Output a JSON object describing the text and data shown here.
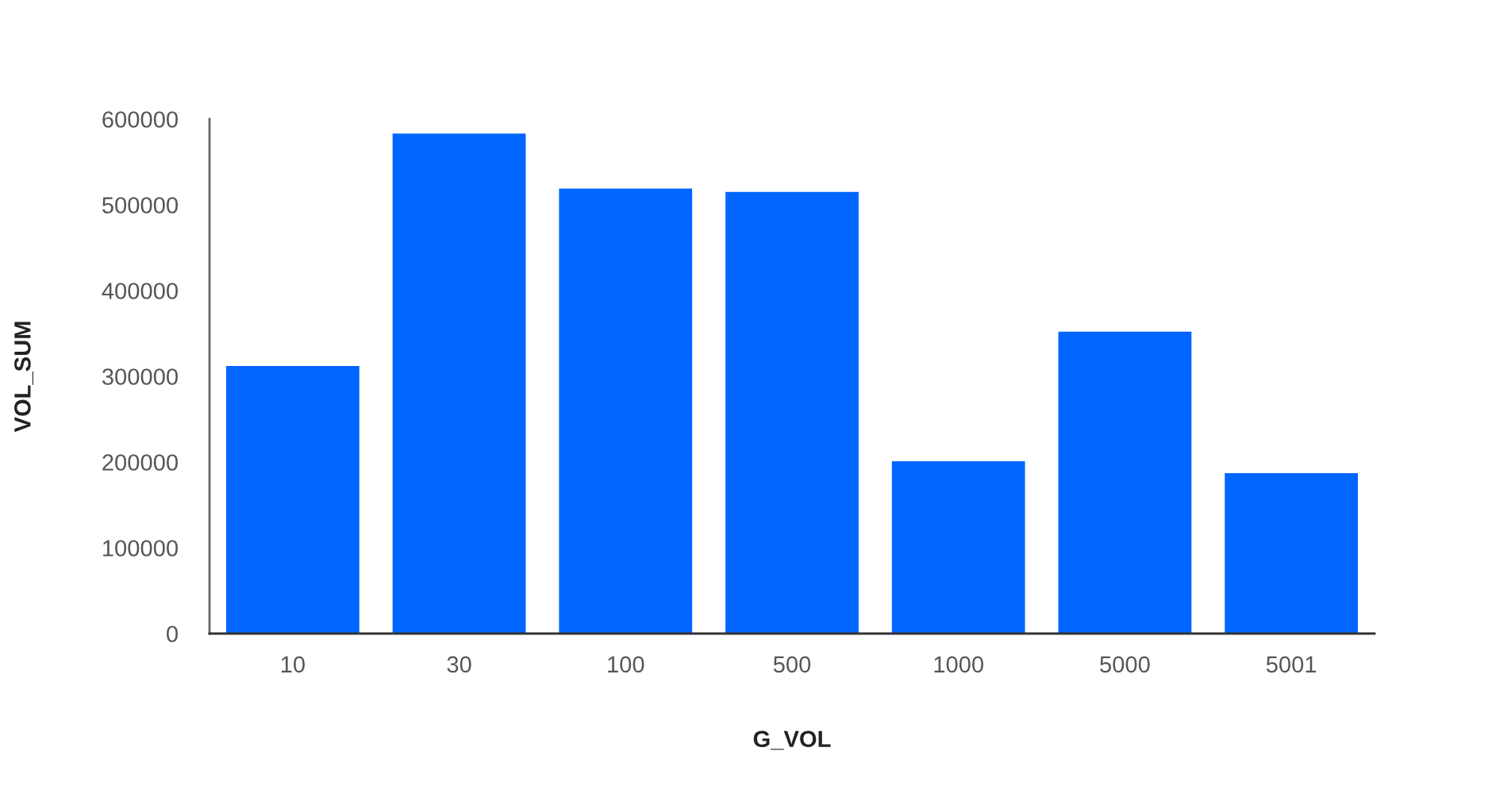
{
  "chart_data": {
    "type": "bar",
    "xlabel": "G_VOL",
    "ylabel": "VOL_SUM",
    "categories": [
      "10",
      "30",
      "100",
      "500",
      "1000",
      "5000",
      "5001"
    ],
    "values": [
      312000,
      583000,
      519000,
      515000,
      201000,
      352000,
      187000
    ],
    "color": "#0066ff",
    "ylim": [
      0,
      600000
    ],
    "yticks": [
      0,
      100000,
      200000,
      300000,
      400000,
      500000,
      600000
    ],
    "grid": false,
    "legend": false
  }
}
